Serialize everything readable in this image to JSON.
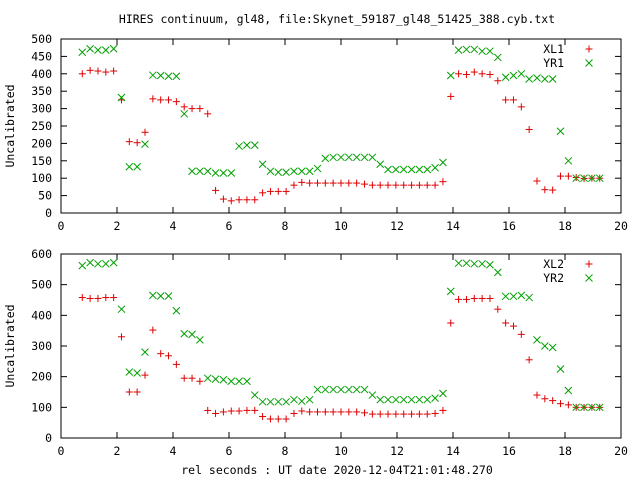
{
  "title": "HIRES continuum, gl48, file:Skynet_59187_gl48_51425_388.cyb.txt",
  "colors": {
    "series1": "#e00000",
    "series2": "#00a000",
    "axis": "#000000",
    "background": "#ffffff"
  },
  "chart_data": [
    {
      "type": "scatter",
      "ylabel": "Uncalibrated",
      "xlabel": "",
      "xlim": [
        0,
        20
      ],
      "ylim": [
        0,
        500
      ],
      "xticks": [
        0,
        2,
        4,
        6,
        8,
        10,
        12,
        14,
        16,
        18,
        20
      ],
      "yticks": [
        0,
        50,
        100,
        150,
        200,
        250,
        300,
        350,
        400,
        450,
        500
      ],
      "grid": false,
      "legend_position": "top-right",
      "series": [
        {
          "name": "XL1",
          "marker": "plus",
          "color": "#e00000",
          "x": [
            0.76,
            1.04,
            1.32,
            1.6,
            1.88,
            2.16,
            2.44,
            2.72,
            3.0,
            3.28,
            3.56,
            3.84,
            4.12,
            4.4,
            4.68,
            4.96,
            5.24,
            5.52,
            5.8,
            6.08,
            6.36,
            6.64,
            6.92,
            7.2,
            7.48,
            7.76,
            8.04,
            8.32,
            8.6,
            8.88,
            9.16,
            9.44,
            9.72,
            10.0,
            10.28,
            10.56,
            10.84,
            11.12,
            11.4,
            11.68,
            11.96,
            12.24,
            12.52,
            12.8,
            13.08,
            13.36,
            13.64,
            13.92,
            14.2,
            14.48,
            14.76,
            15.04,
            15.32,
            15.6,
            15.88,
            16.16,
            16.44,
            16.72,
            17.0,
            17.28,
            17.56,
            17.84,
            18.12,
            18.4,
            18.68,
            18.96,
            19.24
          ],
          "y": [
            400,
            410,
            408,
            405,
            408,
            325,
            205,
            202,
            232,
            328,
            325,
            325,
            320,
            305,
            300,
            300,
            285,
            65,
            40,
            35,
            38,
            38,
            38,
            58,
            62,
            62,
            62,
            80,
            88,
            86,
            86,
            86,
            86,
            86,
            86,
            86,
            83,
            80,
            80,
            80,
            80,
            80,
            80,
            80,
            80,
            80,
            90,
            335,
            400,
            398,
            405,
            400,
            398,
            380,
            325,
            325,
            305,
            240,
            92,
            67,
            66,
            106,
            106,
            102,
            99,
            100,
            100
          ]
        },
        {
          "name": "YR1",
          "marker": "cross",
          "color": "#00a000",
          "x": [
            0.76,
            1.04,
            1.32,
            1.6,
            1.88,
            2.16,
            2.44,
            2.72,
            3.0,
            3.28,
            3.56,
            3.84,
            4.12,
            4.4,
            4.68,
            4.96,
            5.24,
            5.52,
            5.8,
            6.08,
            6.36,
            6.64,
            6.92,
            7.2,
            7.48,
            7.76,
            8.04,
            8.32,
            8.6,
            8.88,
            9.16,
            9.44,
            9.72,
            10.0,
            10.28,
            10.56,
            10.84,
            11.12,
            11.4,
            11.68,
            11.96,
            12.24,
            12.52,
            12.8,
            13.08,
            13.36,
            13.64,
            13.92,
            14.2,
            14.48,
            14.76,
            15.04,
            15.32,
            15.6,
            15.88,
            16.16,
            16.44,
            16.72,
            17.0,
            17.28,
            17.56,
            17.84,
            18.12,
            18.4,
            18.68,
            18.96,
            19.24
          ],
          "y": [
            462,
            472,
            468,
            468,
            472,
            332,
            133,
            133,
            198,
            396,
            395,
            393,
            393,
            285,
            120,
            120,
            120,
            115,
            115,
            115,
            192,
            195,
            195,
            140,
            120,
            117,
            117,
            120,
            120,
            120,
            128,
            157,
            160,
            160,
            160,
            160,
            160,
            160,
            140,
            125,
            125,
            125,
            125,
            125,
            125,
            130,
            145,
            395,
            468,
            470,
            470,
            465,
            465,
            447,
            390,
            395,
            400,
            385,
            388,
            385,
            385,
            235,
            150,
            100,
            100,
            100,
            100
          ]
        }
      ]
    },
    {
      "type": "scatter",
      "ylabel": "Uncalibrated",
      "xlabel": "rel seconds : UT date 2020-12-04T21:01:48.270",
      "xlim": [
        0,
        20
      ],
      "ylim": [
        0,
        600
      ],
      "xticks": [
        0,
        2,
        4,
        6,
        8,
        10,
        12,
        14,
        16,
        18,
        20
      ],
      "yticks": [
        0,
        100,
        200,
        300,
        400,
        500,
        600
      ],
      "grid": false,
      "legend_position": "top-right",
      "series": [
        {
          "name": "XL2",
          "marker": "plus",
          "color": "#e00000",
          "x": [
            0.76,
            1.04,
            1.32,
            1.6,
            1.88,
            2.16,
            2.44,
            2.72,
            3.0,
            3.28,
            3.56,
            3.84,
            4.12,
            4.4,
            4.68,
            4.96,
            5.24,
            5.52,
            5.8,
            6.08,
            6.36,
            6.64,
            6.92,
            7.2,
            7.48,
            7.76,
            8.04,
            8.32,
            8.6,
            8.88,
            9.16,
            9.44,
            9.72,
            10.0,
            10.28,
            10.56,
            10.84,
            11.12,
            11.4,
            11.68,
            11.96,
            12.24,
            12.52,
            12.8,
            13.08,
            13.36,
            13.64,
            13.92,
            14.2,
            14.48,
            14.76,
            15.04,
            15.32,
            15.6,
            15.88,
            16.16,
            16.44,
            16.72,
            17.0,
            17.28,
            17.56,
            17.84,
            18.12,
            18.4,
            18.68,
            18.96,
            19.24
          ],
          "y": [
            458,
            455,
            455,
            458,
            458,
            330,
            150,
            150,
            205,
            352,
            275,
            268,
            240,
            195,
            195,
            185,
            90,
            80,
            85,
            88,
            88,
            90,
            90,
            70,
            62,
            62,
            62,
            80,
            88,
            85,
            85,
            85,
            85,
            85,
            85,
            85,
            82,
            78,
            78,
            78,
            78,
            78,
            78,
            78,
            78,
            80,
            90,
            375,
            452,
            452,
            455,
            455,
            455,
            420,
            375,
            365,
            338,
            255,
            140,
            128,
            122,
            112,
            108,
            100,
            100,
            100,
            100
          ]
        },
        {
          "name": "YR2",
          "marker": "cross",
          "color": "#00a000",
          "x": [
            0.76,
            1.04,
            1.32,
            1.6,
            1.88,
            2.16,
            2.44,
            2.72,
            3.0,
            3.28,
            3.56,
            3.84,
            4.12,
            4.4,
            4.68,
            4.96,
            5.24,
            5.52,
            5.8,
            6.08,
            6.36,
            6.64,
            6.92,
            7.2,
            7.48,
            7.76,
            8.04,
            8.32,
            8.6,
            8.88,
            9.16,
            9.44,
            9.72,
            10.0,
            10.28,
            10.56,
            10.84,
            11.12,
            11.4,
            11.68,
            11.96,
            12.24,
            12.52,
            12.8,
            13.08,
            13.36,
            13.64,
            13.92,
            14.2,
            14.48,
            14.76,
            15.04,
            15.32,
            15.6,
            15.88,
            16.16,
            16.44,
            16.72,
            17.0,
            17.28,
            17.56,
            17.84,
            18.12,
            18.4,
            18.68,
            18.96,
            19.24
          ],
          "y": [
            562,
            572,
            568,
            568,
            572,
            420,
            215,
            212,
            280,
            465,
            463,
            463,
            415,
            340,
            338,
            320,
            195,
            192,
            190,
            185,
            185,
            185,
            140,
            118,
            118,
            118,
            118,
            125,
            120,
            125,
            158,
            158,
            158,
            158,
            158,
            158,
            158,
            140,
            125,
            125,
            125,
            125,
            125,
            125,
            125,
            130,
            145,
            478,
            570,
            570,
            568,
            568,
            565,
            540,
            462,
            462,
            465,
            458,
            320,
            300,
            295,
            225,
            155,
            100,
            100,
            100,
            100
          ]
        }
      ]
    }
  ]
}
